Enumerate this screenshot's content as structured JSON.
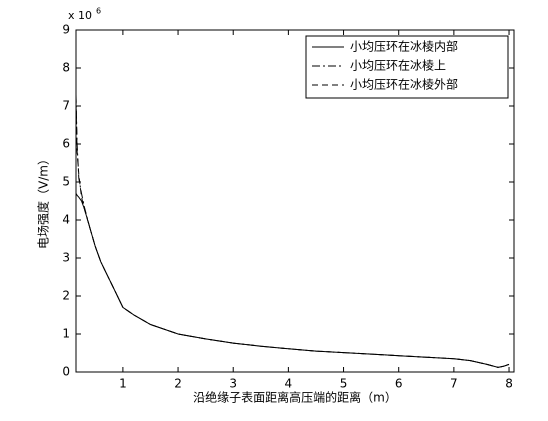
{
  "chart_data": {
    "type": "line",
    "xlabel": "沿绝缘子表面距离高压端的距离（m）",
    "ylabel": "电场强度（V/m）",
    "y_multiplier": {
      "base": "x 10",
      "exponent": "6"
    },
    "x": [
      0.15,
      0.17,
      0.2,
      0.25,
      0.3,
      0.4,
      0.5,
      0.6,
      0.7,
      0.8,
      1.0,
      1.2,
      1.5,
      2,
      2.5,
      3,
      3.5,
      4,
      4.5,
      5,
      5.5,
      6,
      6.5,
      7,
      7.3,
      7.6,
      7.8,
      7.9,
      8.0
    ],
    "series": [
      {
        "name": "小均压环在冰棱内部",
        "color": "#000000",
        "linestyle": "-",
        "values": [
          4.7,
          4.65,
          4.6,
          4.5,
          4.3,
          3.8,
          3.3,
          2.9,
          2.6,
          2.3,
          1.7,
          1.5,
          1.25,
          1.0,
          0.87,
          0.76,
          0.68,
          0.61,
          0.55,
          0.51,
          0.47,
          0.43,
          0.39,
          0.35,
          0.3,
          0.2,
          0.12,
          0.15,
          0.2
        ]
      },
      {
        "name": "小均压环在冰棱上",
        "color": "#000000",
        "linestyle": "-.",
        "values": [
          7.3,
          6.0,
          5.1,
          4.7,
          4.35,
          3.8,
          3.3,
          2.9,
          2.6,
          2.3,
          1.7,
          1.5,
          1.25,
          1.0,
          0.87,
          0.76,
          0.68,
          0.61,
          0.55,
          0.51,
          0.47,
          0.43,
          0.39,
          0.35,
          0.3,
          0.2,
          0.12,
          0.15,
          0.2
        ]
      },
      {
        "name": "小均压环在冰棱外部",
        "color": "#000000",
        "linestyle": "--",
        "values": [
          7.2,
          5.8,
          5.2,
          4.6,
          4.3,
          3.8,
          3.3,
          2.9,
          2.6,
          2.3,
          1.7,
          1.5,
          1.25,
          1.0,
          0.87,
          0.76,
          0.68,
          0.61,
          0.55,
          0.51,
          0.47,
          0.43,
          0.39,
          0.35,
          0.3,
          0.2,
          0.12,
          0.15,
          0.2
        ]
      }
    ],
    "xlim": [
      0.15,
      8.09
    ],
    "ylim": [
      0,
      9
    ],
    "xticks": [
      1,
      2,
      3,
      4,
      5,
      6,
      7,
      8
    ],
    "yticks": [
      0,
      1,
      2,
      3,
      4,
      5,
      6,
      7,
      8,
      9
    ],
    "legend": "top-right"
  }
}
